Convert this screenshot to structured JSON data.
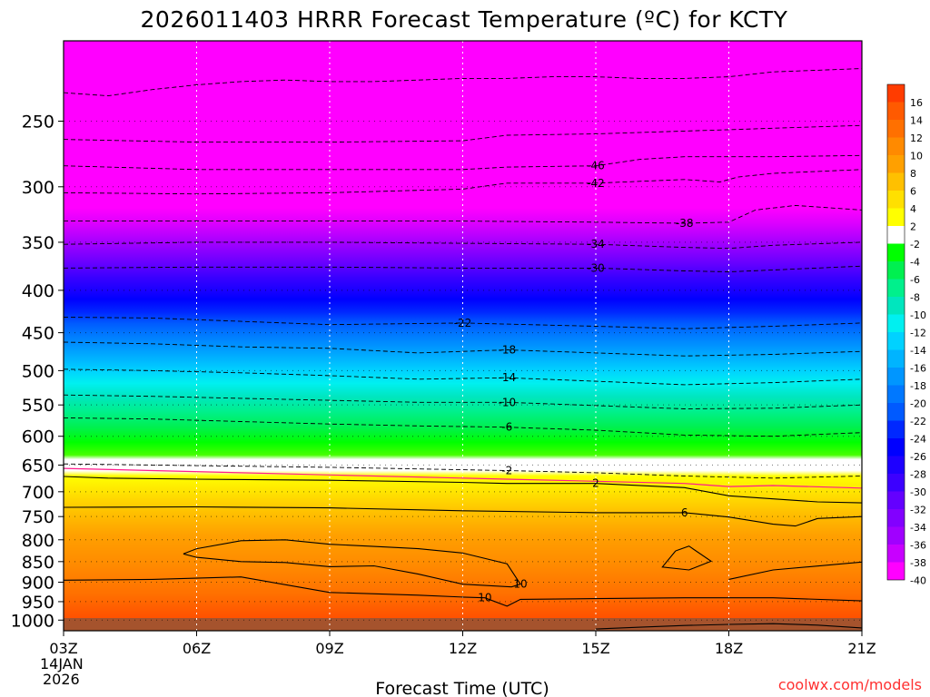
{
  "chart_data": {
    "type": "heatmap",
    "title": "2026011403 HRRR Forecast Temperature (ºC) for KCTY",
    "xlabel": "Forecast Time (UTC)",
    "ylabel": "",
    "x_ticks": [
      "03Z",
      "06Z",
      "09Z",
      "12Z",
      "15Z",
      "18Z",
      "21Z"
    ],
    "x_tick_hours": [
      3,
      6,
      9,
      12,
      15,
      18,
      21
    ],
    "date_label": [
      "14JAN",
      "2026"
    ],
    "xlim": [
      3,
      21
    ],
    "y_ticks": [
      250,
      300,
      350,
      400,
      450,
      500,
      550,
      600,
      650,
      700,
      750,
      800,
      850,
      900,
      950,
      1000
    ],
    "ylim_hpa": [
      200,
      1030
    ],
    "y_axis_log_pressure": true,
    "colorbar": {
      "labels": [
        16,
        14,
        12,
        10,
        8,
        6,
        4,
        2,
        -2,
        -4,
        -6,
        -8,
        -10,
        -12,
        -14,
        -16,
        -18,
        -20,
        -22,
        -24,
        -26,
        -28,
        -30,
        -32,
        -34,
        -36,
        -38,
        -40
      ],
      "colors": [
        "#ff3c00",
        "#ff5a00",
        "#ff7000",
        "#ff8a00",
        "#ffa000",
        "#ffc000",
        "#ffe000",
        "#ffff00",
        "#ffffff",
        "#00ff00",
        "#00f050",
        "#00f08c",
        "#00e6be",
        "#00f0f0",
        "#00d2ff",
        "#00b4ff",
        "#0096ff",
        "#0078ff",
        "#005aff",
        "#0028ff",
        "#0000ff",
        "#1e00ff",
        "#3c00ff",
        "#6400ff",
        "#8200ff",
        "#a000ff",
        "#c800ff",
        "#ff00ff"
      ]
    },
    "isotherms": [
      {
        "value": -50,
        "label": "",
        "hours": [
          3,
          4,
          5,
          6,
          7,
          8,
          9,
          10,
          11,
          12,
          13,
          14,
          15,
          16,
          17,
          18,
          19,
          20,
          21
        ],
        "hpa": [
          231,
          233,
          229,
          226,
          224,
          223,
          224,
          224,
          223,
          222,
          222,
          221,
          221,
          222,
          222,
          221,
          218,
          217,
          216
        ]
      },
      {
        "value": -48,
        "label": "",
        "hours": [
          3,
          6,
          9,
          12,
          13,
          15,
          17,
          18,
          19,
          21
        ],
        "hpa": [
          263,
          265,
          265,
          264,
          260,
          259,
          257,
          256,
          255,
          253
        ]
      },
      {
        "value": -46,
        "label": "-46",
        "hours": [
          3,
          6,
          9,
          12,
          13,
          15,
          16,
          17,
          18,
          19,
          21
        ],
        "hpa": [
          283,
          286,
          286,
          286,
          284,
          283,
          278,
          276,
          276,
          276,
          275
        ]
      },
      {
        "value": -42,
        "label": "-42",
        "hours": [
          3,
          6,
          9,
          11,
          12,
          13,
          15,
          17,
          17.8,
          18.2,
          19,
          21
        ],
        "hpa": [
          305,
          306,
          305,
          303,
          302,
          297,
          297,
          294,
          296,
          292,
          289,
          286
        ]
      },
      {
        "value": -38,
        "label": "-38",
        "hours": [
          3,
          6,
          9,
          12,
          15,
          17,
          18,
          18.6,
          19.5,
          21
        ],
        "hpa": [
          330,
          330,
          330,
          330,
          331,
          332,
          331,
          320,
          316,
          320
        ]
      },
      {
        "value": -34,
        "label": "-34",
        "hours": [
          3,
          6,
          9,
          12,
          15,
          17,
          18,
          19,
          21
        ],
        "hpa": [
          352,
          350,
          350,
          351,
          352,
          355,
          356,
          353,
          350
        ]
      },
      {
        "value": -30,
        "label": "-30",
        "hours": [
          3,
          6,
          9,
          12,
          15,
          17,
          18,
          19,
          21
        ],
        "hpa": [
          376,
          375,
          375,
          376,
          376,
          379,
          380,
          378,
          374
        ]
      },
      {
        "value": -22,
        "label": "-22",
        "hours": [
          3,
          5,
          7,
          9,
          12,
          15,
          17,
          19,
          21
        ],
        "hpa": [
          431,
          432,
          436,
          440,
          438,
          442,
          445,
          442,
          438
        ]
      },
      {
        "value": -18,
        "label": "-18",
        "hours": [
          3,
          5,
          7,
          9,
          11,
          13,
          15,
          17,
          19,
          21
        ],
        "hpa": [
          462,
          464,
          468,
          470,
          476,
          472,
          476,
          480,
          478,
          474
        ]
      },
      {
        "value": -14,
        "label": "-14",
        "hours": [
          3,
          5,
          7,
          9,
          11,
          13,
          15,
          17,
          19,
          21
        ],
        "hpa": [
          498,
          500,
          503,
          507,
          512,
          510,
          515,
          520,
          517,
          512
        ]
      },
      {
        "value": -10,
        "label": "-10",
        "hours": [
          3,
          5,
          7,
          9,
          11,
          13,
          15,
          17,
          19,
          21
        ],
        "hpa": [
          535,
          537,
          540,
          543,
          546,
          546,
          551,
          556,
          555,
          550
        ]
      },
      {
        "value": -6,
        "label": "-6",
        "hours": [
          3,
          5,
          7,
          9,
          11,
          13,
          15,
          17,
          19,
          21
        ],
        "hpa": [
          570,
          572,
          576,
          580,
          583,
          585,
          590,
          598,
          600,
          594
        ]
      },
      {
        "value": -2,
        "label": "-2",
        "hours": [
          3,
          5,
          7,
          9,
          11,
          13,
          15,
          17,
          19,
          21
        ],
        "hpa": [
          648,
          650,
          652,
          654,
          657,
          660,
          664,
          670,
          674,
          670
        ]
      },
      {
        "value": 0,
        "label": "",
        "hours": [
          3,
          5,
          7,
          9,
          11,
          13,
          15,
          17,
          18,
          19,
          21
        ],
        "hpa": [
          656,
          660,
          664,
          668,
          672,
          676,
          680,
          684,
          690,
          688,
          693
        ]
      },
      {
        "value": 2,
        "label": "2",
        "hours": [
          3,
          4,
          6,
          9,
          12,
          13,
          15,
          17,
          18,
          19,
          20,
          21
        ],
        "hpa": [
          671,
          674,
          676,
          678,
          682,
          684,
          684,
          692,
          708,
          714,
          720,
          722
        ]
      },
      {
        "value": 6,
        "label": "6",
        "hours": [
          3,
          6,
          9,
          12,
          15,
          17,
          18,
          19,
          19.5,
          20,
          21
        ],
        "hpa": [
          731,
          730,
          732,
          738,
          742,
          742,
          751,
          766,
          770,
          754,
          750
        ]
      },
      {
        "value": 10,
        "label": "10",
        "hours": [
          3,
          5,
          7,
          9,
          11,
          12,
          12.5,
          13,
          13.3,
          15,
          17,
          19,
          21
        ],
        "hpa": [
          895,
          893,
          887,
          926,
          933,
          938,
          940,
          962,
          944,
          942,
          940,
          940,
          948
        ]
      },
      {
        "value": 10.5,
        "label": "10",
        "hours": [
          5.7,
          6,
          7,
          8,
          9,
          10,
          11,
          12,
          13,
          13.3,
          13.1,
          12,
          11,
          10,
          9,
          8,
          7,
          6,
          5.7
        ],
        "hpa": [
          832,
          820,
          802,
          800,
          810,
          815,
          820,
          830,
          855,
          905,
          912,
          905,
          880,
          860,
          862,
          852,
          850,
          840,
          832
        ]
      },
      {
        "value": 10.7,
        "label": "",
        "hours": [
          16.8,
          17.1,
          17.6,
          17.1,
          16.5,
          16.8
        ],
        "hpa": [
          825,
          814,
          849,
          870,
          863,
          825
        ]
      },
      {
        "value": 10.9,
        "label": "",
        "hours": [
          18,
          19,
          21
        ],
        "hpa": [
          893,
          870,
          851
        ]
      },
      {
        "value": 14,
        "label": "",
        "hours": [
          15,
          16,
          17,
          18,
          19,
          20,
          21
        ],
        "hpa": [
          1025,
          1020,
          1015,
          1012,
          1010,
          1014,
          1022
        ]
      }
    ],
    "annotations": []
  },
  "credit": "coolwx.com/models"
}
